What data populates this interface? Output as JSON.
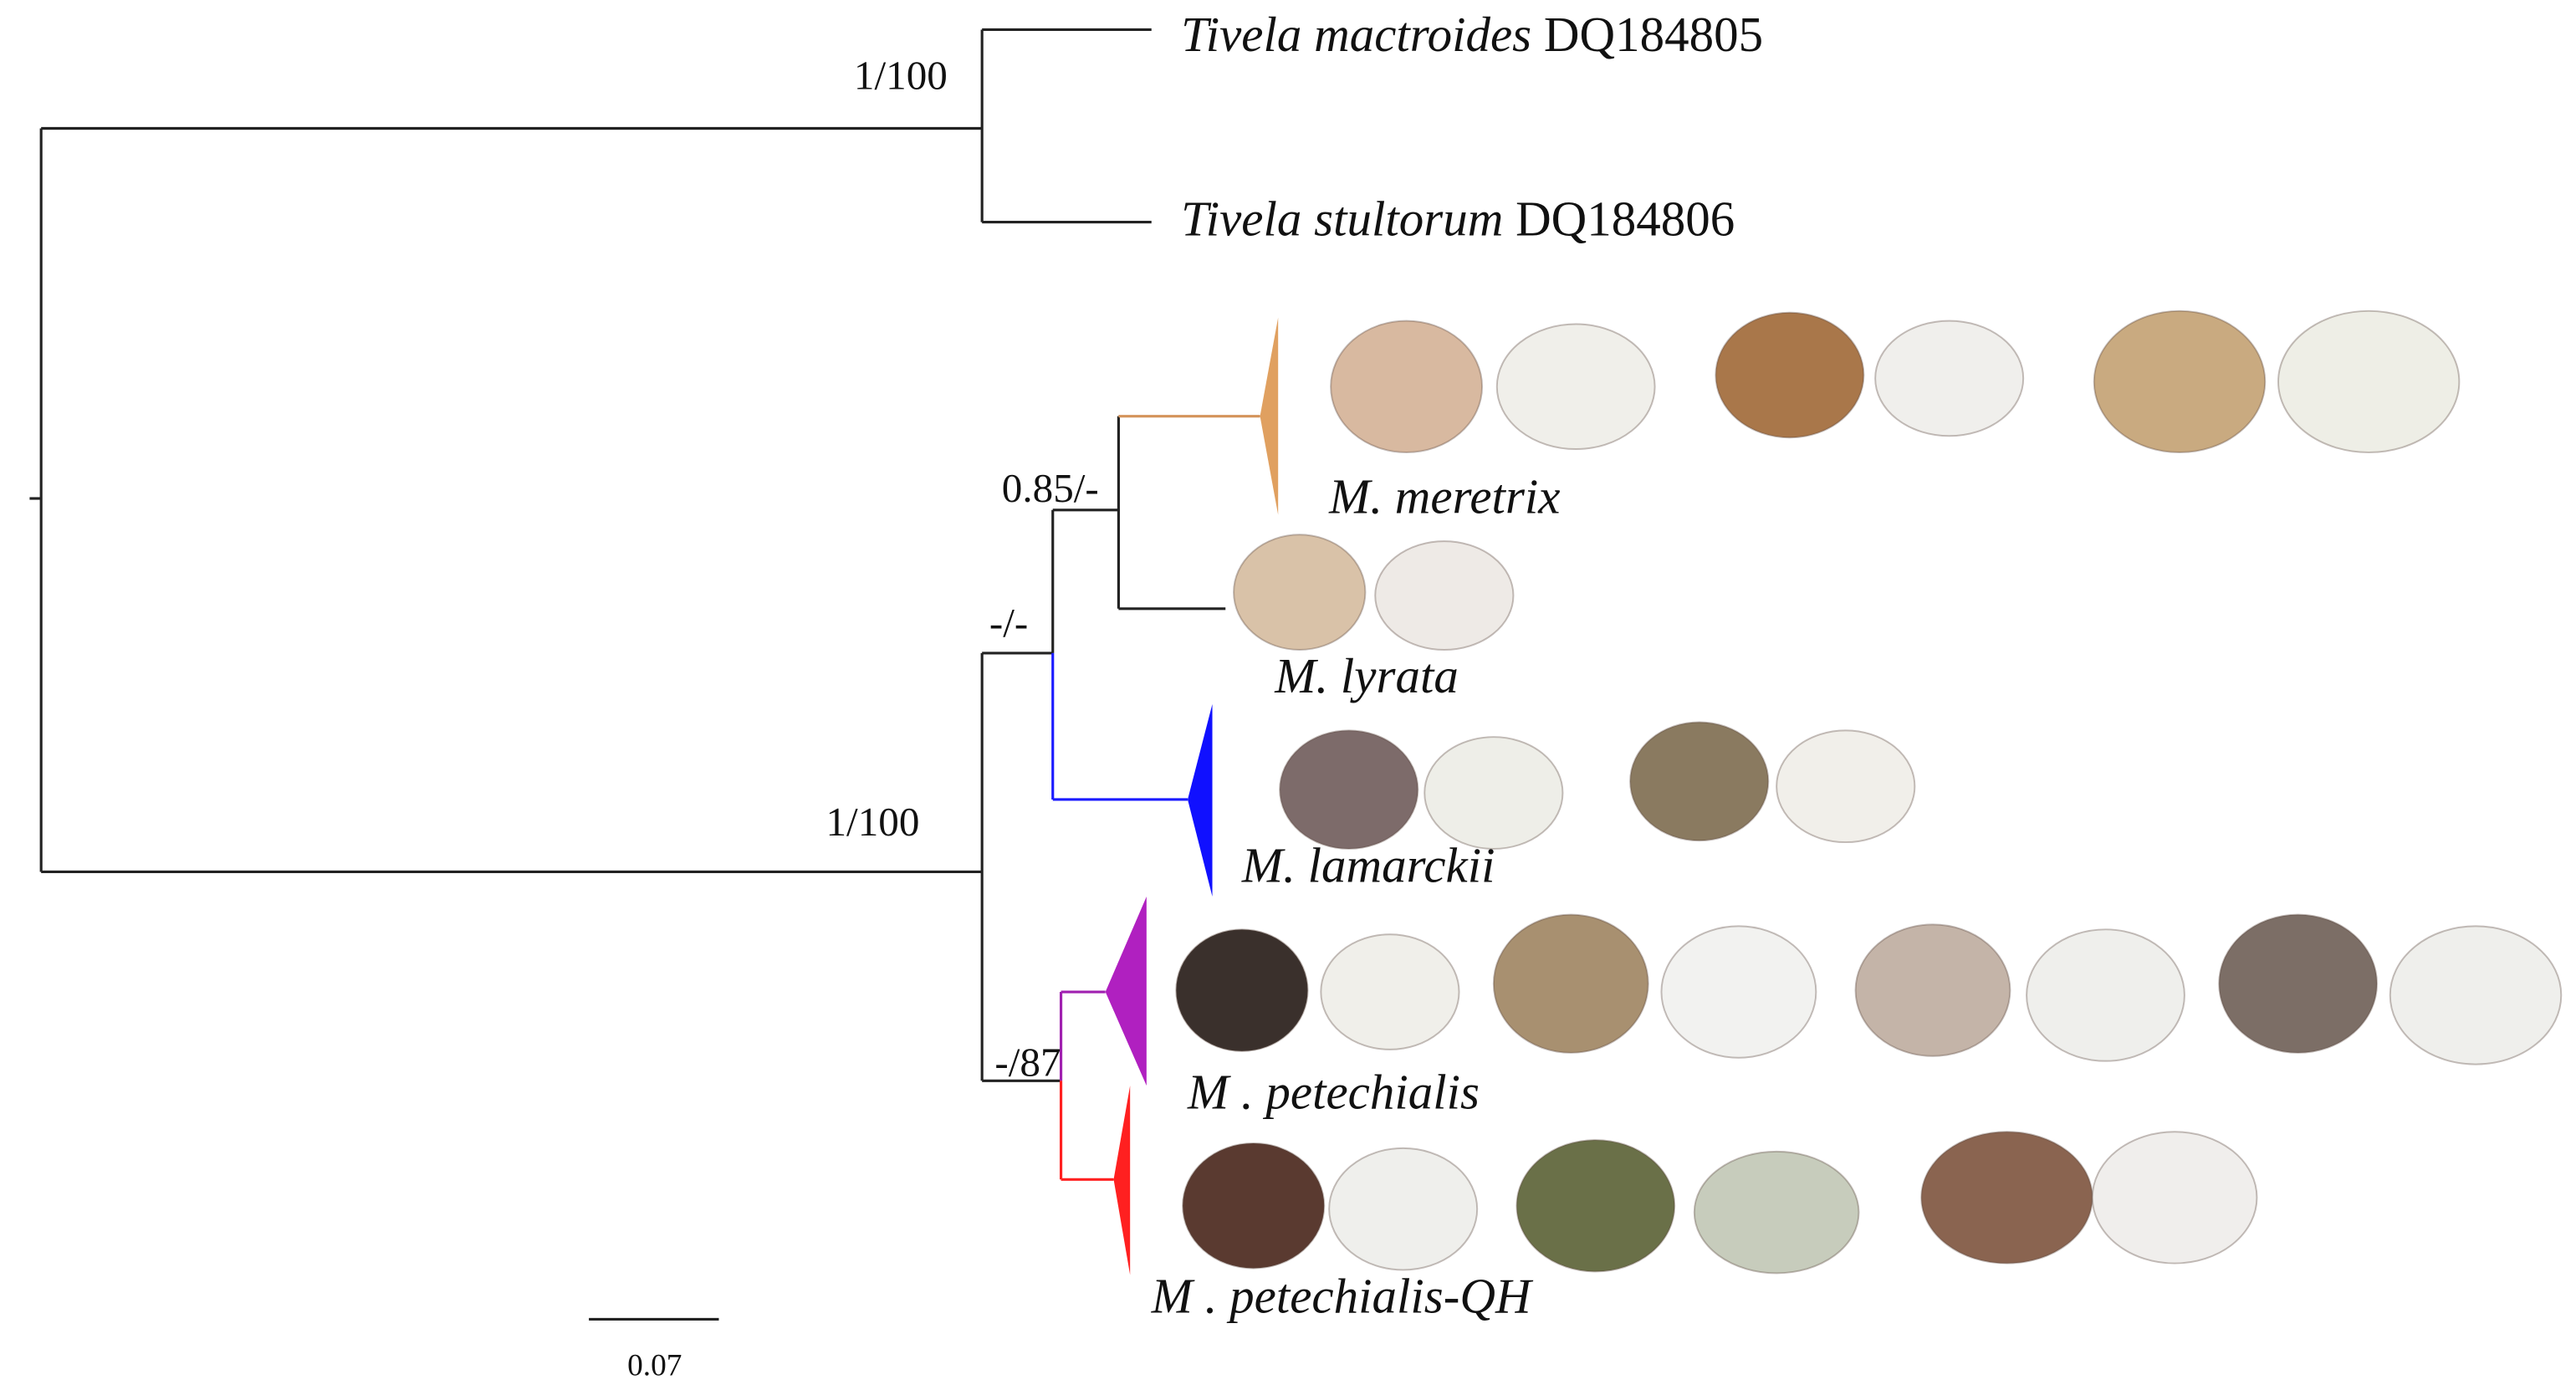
{
  "leaves": [
    {
      "species": "Tivela mactroides",
      "accession": "DQ184805"
    },
    {
      "species": "Tivela stultorum",
      "accession": "DQ184806"
    }
  ],
  "clades": [
    {
      "label": "M. meretrix"
    },
    {
      "label": "M. lyrata"
    },
    {
      "label": "M. lamarckii"
    },
    {
      "label": "M . petechialis"
    },
    {
      "label": "M . petechialis-QH"
    }
  ],
  "support": [
    "1/100",
    "1/100",
    "0.85/-",
    "-/-",
    "-/87"
  ],
  "scale_bar": "0.07"
}
